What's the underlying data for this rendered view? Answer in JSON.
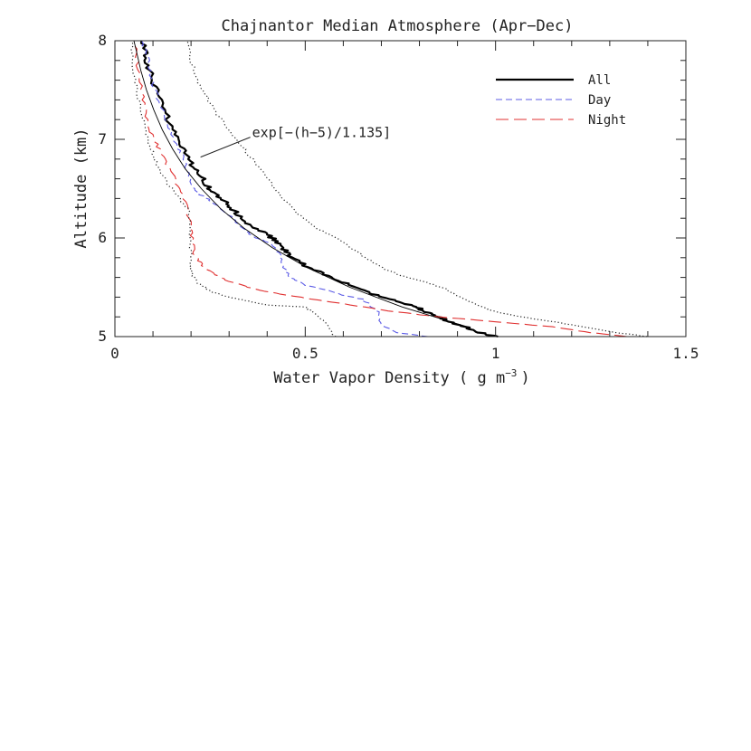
{
  "chart_data": {
    "type": "line",
    "title": "Chajnantor Median Atmosphere (Apr−Dec)",
    "xlabel_prefix": "Water Vapor Density ( g m",
    "xlabel_exponent": "−3",
    "xlabel_suffix": ")",
    "ylabel": "Altitude (km)",
    "xlim": [
      0,
      1.5
    ],
    "ylim": [
      5,
      8
    ],
    "x_ticks": [
      {
        "value": 0,
        "label": "0"
      },
      {
        "value": 0.5,
        "label": "0.5"
      },
      {
        "value": 1,
        "label": "1"
      },
      {
        "value": 1.5,
        "label": "1.5"
      }
    ],
    "y_ticks": [
      {
        "value": 5,
        "label": "5"
      },
      {
        "value": 6,
        "label": "6"
      },
      {
        "value": 7,
        "label": "7"
      },
      {
        "value": 8,
        "label": "8"
      }
    ],
    "grid": false,
    "legend_position": "top-right",
    "series": [
      {
        "name": "All",
        "style": "solid-thick",
        "color": "#000000",
        "points": [
          [
            1.0,
            5.0
          ],
          [
            0.95,
            5.05
          ],
          [
            0.92,
            5.1
          ],
          [
            0.88,
            5.15
          ],
          [
            0.85,
            5.2
          ],
          [
            0.82,
            5.25
          ],
          [
            0.79,
            5.3
          ],
          [
            0.74,
            5.36
          ],
          [
            0.69,
            5.42
          ],
          [
            0.64,
            5.48
          ],
          [
            0.6,
            5.55
          ],
          [
            0.55,
            5.63
          ],
          [
            0.5,
            5.72
          ],
          [
            0.46,
            5.82
          ],
          [
            0.44,
            5.9
          ],
          [
            0.42,
            5.98
          ],
          [
            0.39,
            6.06
          ],
          [
            0.35,
            6.15
          ],
          [
            0.32,
            6.25
          ],
          [
            0.3,
            6.33
          ],
          [
            0.27,
            6.42
          ],
          [
            0.25,
            6.5
          ],
          [
            0.23,
            6.6
          ],
          [
            0.21,
            6.7
          ],
          [
            0.19,
            6.82
          ],
          [
            0.17,
            6.95
          ],
          [
            0.15,
            7.1
          ],
          [
            0.13,
            7.3
          ],
          [
            0.11,
            7.5
          ],
          [
            0.09,
            7.7
          ],
          [
            0.08,
            7.85
          ],
          [
            0.07,
            8.0
          ]
        ]
      },
      {
        "name": "Day",
        "style": "short-dash",
        "color": "#5b5be6",
        "points": [
          [
            0.82,
            5.0
          ],
          [
            0.74,
            5.04
          ],
          [
            0.7,
            5.12
          ],
          [
            0.69,
            5.25
          ],
          [
            0.67,
            5.32
          ],
          [
            0.65,
            5.38
          ],
          [
            0.6,
            5.42
          ],
          [
            0.55,
            5.48
          ],
          [
            0.5,
            5.52
          ],
          [
            0.46,
            5.6
          ],
          [
            0.44,
            5.72
          ],
          [
            0.43,
            5.85
          ],
          [
            0.41,
            5.95
          ],
          [
            0.37,
            6.0
          ],
          [
            0.34,
            6.08
          ],
          [
            0.31,
            6.2
          ],
          [
            0.28,
            6.3
          ],
          [
            0.25,
            6.38
          ],
          [
            0.22,
            6.45
          ],
          [
            0.2,
            6.55
          ],
          [
            0.19,
            6.68
          ],
          [
            0.18,
            6.82
          ],
          [
            0.16,
            6.95
          ],
          [
            0.14,
            7.15
          ],
          [
            0.12,
            7.35
          ],
          [
            0.1,
            7.55
          ],
          [
            0.09,
            7.75
          ],
          [
            0.08,
            7.9
          ],
          [
            0.07,
            8.0
          ]
        ]
      },
      {
        "name": "Night",
        "style": "long-dash",
        "color": "#e03030",
        "points": [
          [
            1.35,
            5.0
          ],
          [
            1.25,
            5.04
          ],
          [
            1.15,
            5.1
          ],
          [
            1.0,
            5.15
          ],
          [
            0.85,
            5.2
          ],
          [
            0.72,
            5.26
          ],
          [
            0.62,
            5.32
          ],
          [
            0.52,
            5.38
          ],
          [
            0.42,
            5.44
          ],
          [
            0.35,
            5.5
          ],
          [
            0.3,
            5.56
          ],
          [
            0.26,
            5.64
          ],
          [
            0.23,
            5.72
          ],
          [
            0.21,
            5.82
          ],
          [
            0.205,
            5.95
          ],
          [
            0.2,
            6.1
          ],
          [
            0.19,
            6.3
          ],
          [
            0.17,
            6.5
          ],
          [
            0.15,
            6.65
          ],
          [
            0.13,
            6.8
          ],
          [
            0.11,
            6.95
          ],
          [
            0.09,
            7.1
          ],
          [
            0.08,
            7.3
          ],
          [
            0.07,
            7.5
          ],
          [
            0.06,
            7.75
          ],
          [
            0.05,
            8.0
          ]
        ]
      },
      {
        "name": "",
        "style": "dotted-upper",
        "color": "#222222",
        "points": [
          [
            1.4,
            5.0
          ],
          [
            1.3,
            5.05
          ],
          [
            1.2,
            5.12
          ],
          [
            1.1,
            5.18
          ],
          [
            1.0,
            5.25
          ],
          [
            0.95,
            5.32
          ],
          [
            0.91,
            5.4
          ],
          [
            0.87,
            5.48
          ],
          [
            0.82,
            5.55
          ],
          [
            0.75,
            5.62
          ],
          [
            0.7,
            5.7
          ],
          [
            0.66,
            5.8
          ],
          [
            0.62,
            5.9
          ],
          [
            0.58,
            6.0
          ],
          [
            0.53,
            6.1
          ],
          [
            0.48,
            6.25
          ],
          [
            0.44,
            6.4
          ],
          [
            0.41,
            6.55
          ],
          [
            0.38,
            6.7
          ],
          [
            0.35,
            6.85
          ],
          [
            0.32,
            7.0
          ],
          [
            0.29,
            7.15
          ],
          [
            0.26,
            7.3
          ],
          [
            0.24,
            7.45
          ],
          [
            0.215,
            7.6
          ],
          [
            0.2,
            7.8
          ],
          [
            0.19,
            8.0
          ]
        ]
      },
      {
        "name": "",
        "style": "dotted-lower",
        "color": "#222222",
        "points": [
          [
            0.58,
            5.0
          ],
          [
            0.55,
            5.15
          ],
          [
            0.52,
            5.25
          ],
          [
            0.5,
            5.3
          ],
          [
            0.4,
            5.32
          ],
          [
            0.35,
            5.36
          ],
          [
            0.3,
            5.4
          ],
          [
            0.25,
            5.46
          ],
          [
            0.22,
            5.54
          ],
          [
            0.2,
            5.65
          ],
          [
            0.2,
            5.8
          ],
          [
            0.2,
            5.95
          ],
          [
            0.2,
            6.1
          ],
          [
            0.19,
            6.3
          ],
          [
            0.16,
            6.45
          ],
          [
            0.13,
            6.6
          ],
          [
            0.11,
            6.75
          ],
          [
            0.095,
            6.9
          ],
          [
            0.08,
            7.05
          ],
          [
            0.07,
            7.25
          ],
          [
            0.06,
            7.45
          ],
          [
            0.05,
            7.7
          ],
          [
            0.045,
            8.0
          ]
        ]
      },
      {
        "name": "",
        "style": "thin-fit",
        "color": "#000000",
        "points": [
          [
            0.925,
            5.1
          ],
          [
            0.755,
            5.3
          ],
          [
            0.617,
            5.5
          ],
          [
            0.505,
            5.7
          ],
          [
            0.414,
            5.9
          ],
          [
            0.339,
            6.1
          ],
          [
            0.277,
            6.3
          ],
          [
            0.227,
            6.5
          ],
          [
            0.185,
            6.7
          ],
          [
            0.152,
            6.9
          ],
          [
            0.124,
            7.1
          ],
          [
            0.102,
            7.3
          ],
          [
            0.083,
            7.5
          ],
          [
            0.068,
            7.7
          ],
          [
            0.056,
            7.9
          ],
          [
            0.05,
            8.0
          ]
        ]
      }
    ],
    "annotation": {
      "text": "exp[−(h−5)/1.135]",
      "target": [
        0.225,
        6.82
      ]
    }
  }
}
